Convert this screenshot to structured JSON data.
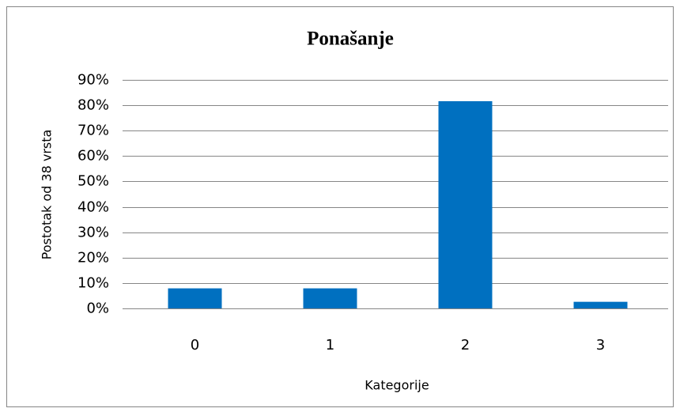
{
  "chart_data": {
    "type": "bar",
    "title": "Ponašanje",
    "x_label": "Kategorije",
    "y_label": "Postotak od 38 vrsta",
    "categories": [
      "0",
      "1",
      "2",
      "3"
    ],
    "values": [
      7.9,
      7.9,
      81.6,
      2.6
    ],
    "color": "#0070c0",
    "ylim": [
      0,
      90
    ],
    "yticks": [
      {
        "value": 0,
        "label": "0%"
      },
      {
        "value": 10,
        "label": "10%"
      },
      {
        "value": 20,
        "label": "20%"
      },
      {
        "value": 30,
        "label": "30%"
      },
      {
        "value": 40,
        "label": "40%"
      },
      {
        "value": 50,
        "label": "50%"
      },
      {
        "value": 60,
        "label": "60%"
      },
      {
        "value": 70,
        "label": "70%"
      },
      {
        "value": 80,
        "label": "80%"
      },
      {
        "value": 90,
        "label": "90%"
      }
    ],
    "grid": true
  }
}
